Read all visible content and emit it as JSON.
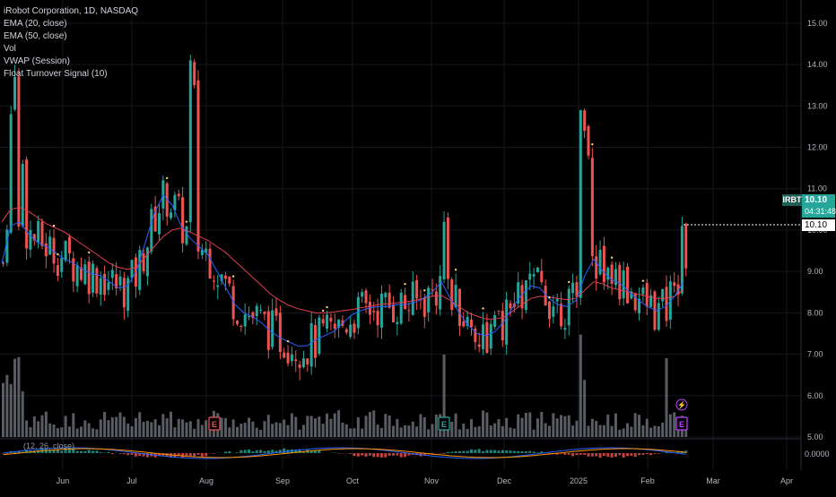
{
  "header": {
    "symbol_line": "iRobot Corporation, 1D, NASDAQ",
    "indicators": [
      "EMA (20, close)",
      "EMA (50, close)",
      "Vol",
      "VWAP (Session)",
      "Float Turnover Signal (10)"
    ],
    "macd_label": "(12, 26, close)"
  },
  "price_axis": {
    "ticks": [
      "15.00",
      "14.00",
      "13.00",
      "12.00",
      "11.00",
      "10.00",
      "9.00",
      "8.00",
      "7.00",
      "6.00",
      "5.00"
    ],
    "macd_tick": "0.0000"
  },
  "last_price": {
    "symbol": "IRBT",
    "price": "10.10",
    "countdown": "04:31:48",
    "line_label": "10.10"
  },
  "time_axis": {
    "labels": [
      "Jun",
      "Jul",
      "Aug",
      "Sep",
      "Oct",
      "Nov",
      "Dec",
      "2025",
      "Feb",
      "Mar",
      "Apr"
    ]
  },
  "markers": {
    "earnings": "E",
    "dividend": "⚡"
  },
  "colors": {
    "up": "#26a69a",
    "down": "#ef5350",
    "ema20": "#2962ff",
    "ema50": "#e04050",
    "volume": "#787b86",
    "tag_bg": "#26a69a",
    "signal": "#f5d76e",
    "earnings_up": "#26a69a",
    "earnings_down": "#ef5350",
    "earnings_future": "#c040ff"
  },
  "chart_data": {
    "type": "candlestick",
    "title": "iRobot Corporation, 1D, NASDAQ",
    "ylim": [
      5,
      15.3
    ],
    "ema20": [
      [
        0,
        9.2
      ],
      [
        10,
        10.1
      ],
      [
        20,
        10.2
      ],
      [
        30,
        9.9
      ],
      [
        40,
        9.7
      ],
      [
        50,
        9.6
      ],
      [
        60,
        9.45
      ],
      [
        70,
        9.3
      ],
      [
        80,
        9.2
      ],
      [
        90,
        9.05
      ],
      [
        100,
        8.95
      ],
      [
        110,
        8.9
      ],
      [
        120,
        8.75
      ],
      [
        130,
        8.6
      ],
      [
        140,
        8.65
      ],
      [
        150,
        9.0
      ],
      [
        160,
        9.7
      ],
      [
        170,
        10.4
      ],
      [
        180,
        10.85
      ],
      [
        190,
        10.6
      ],
      [
        200,
        10.1
      ],
      [
        210,
        9.8
      ],
      [
        220,
        9.6
      ],
      [
        230,
        9.4
      ],
      [
        240,
        9.0
      ],
      [
        250,
        8.6
      ],
      [
        260,
        8.2
      ],
      [
        270,
        8.0
      ],
      [
        280,
        7.9
      ],
      [
        290,
        7.75
      ],
      [
        300,
        7.55
      ],
      [
        310,
        7.4
      ],
      [
        320,
        7.3
      ],
      [
        330,
        7.2
      ],
      [
        340,
        7.2
      ],
      [
        350,
        7.35
      ],
      [
        360,
        7.45
      ],
      [
        370,
        7.55
      ],
      [
        380,
        7.75
      ],
      [
        390,
        7.95
      ],
      [
        400,
        8.05
      ],
      [
        410,
        8.12
      ],
      [
        420,
        8.15
      ],
      [
        430,
        8.15
      ],
      [
        440,
        8.2
      ],
      [
        450,
        8.2
      ],
      [
        460,
        8.25
      ],
      [
        470,
        8.35
      ],
      [
        480,
        8.5
      ],
      [
        490,
        8.75
      ],
      [
        500,
        8.35
      ],
      [
        510,
        8.0
      ],
      [
        520,
        7.7
      ],
      [
        530,
        7.5
      ],
      [
        540,
        7.45
      ],
      [
        550,
        7.55
      ],
      [
        560,
        7.8
      ],
      [
        570,
        8.15
      ],
      [
        580,
        8.45
      ],
      [
        590,
        8.65
      ],
      [
        600,
        8.6
      ],
      [
        610,
        8.35
      ],
      [
        620,
        8.2
      ],
      [
        630,
        8.15
      ],
      [
        640,
        8.3
      ],
      [
        650,
        8.9
      ],
      [
        660,
        9.3
      ],
      [
        670,
        9.0
      ],
      [
        680,
        8.8
      ],
      [
        690,
        8.7
      ],
      [
        700,
        8.5
      ],
      [
        710,
        8.3
      ],
      [
        720,
        8.15
      ],
      [
        730,
        8.05
      ],
      [
        740,
        8.15
      ],
      [
        750,
        8.4
      ],
      [
        760,
        8.75
      ]
    ],
    "ema50": [
      [
        0,
        10.2
      ],
      [
        10,
        10.5
      ],
      [
        20,
        10.55
      ],
      [
        30,
        10.45
      ],
      [
        40,
        10.3
      ],
      [
        50,
        10.15
      ],
      [
        60,
        10.05
      ],
      [
        70,
        9.95
      ],
      [
        80,
        9.8
      ],
      [
        90,
        9.65
      ],
      [
        100,
        9.5
      ],
      [
        110,
        9.35
      ],
      [
        120,
        9.2
      ],
      [
        130,
        9.1
      ],
      [
        140,
        9.05
      ],
      [
        150,
        9.1
      ],
      [
        160,
        9.35
      ],
      [
        170,
        9.6
      ],
      [
        180,
        9.85
      ],
      [
        190,
        10.0
      ],
      [
        200,
        10.05
      ],
      [
        210,
        9.95
      ],
      [
        220,
        9.85
      ],
      [
        230,
        9.75
      ],
      [
        240,
        9.6
      ],
      [
        250,
        9.45
      ],
      [
        260,
        9.25
      ],
      [
        270,
        9.05
      ],
      [
        280,
        8.85
      ],
      [
        290,
        8.65
      ],
      [
        300,
        8.45
      ],
      [
        310,
        8.3
      ],
      [
        320,
        8.18
      ],
      [
        330,
        8.1
      ],
      [
        340,
        8.05
      ],
      [
        350,
        8.0
      ],
      [
        360,
        8.0
      ],
      [
        370,
        8.02
      ],
      [
        380,
        8.05
      ],
      [
        390,
        8.08
      ],
      [
        400,
        8.12
      ],
      [
        410,
        8.16
      ],
      [
        420,
        8.2
      ],
      [
        430,
        8.22
      ],
      [
        440,
        8.24
      ],
      [
        450,
        8.26
      ],
      [
        460,
        8.3
      ],
      [
        470,
        8.35
      ],
      [
        480,
        8.4
      ],
      [
        490,
        8.42
      ],
      [
        500,
        8.3
      ],
      [
        510,
        8.15
      ],
      [
        520,
        8.0
      ],
      [
        530,
        7.92
      ],
      [
        540,
        7.85
      ],
      [
        550,
        7.85
      ],
      [
        560,
        7.9
      ],
      [
        570,
        8.05
      ],
      [
        580,
        8.2
      ],
      [
        590,
        8.35
      ],
      [
        600,
        8.4
      ],
      [
        610,
        8.38
      ],
      [
        620,
        8.35
      ],
      [
        630,
        8.32
      ],
      [
        640,
        8.35
      ],
      [
        650,
        8.55
      ],
      [
        660,
        8.75
      ],
      [
        670,
        8.7
      ],
      [
        680,
        8.6
      ],
      [
        690,
        8.55
      ],
      [
        700,
        8.5
      ],
      [
        710,
        8.45
      ],
      [
        720,
        8.4
      ],
      [
        730,
        8.35
      ],
      [
        740,
        8.35
      ],
      [
        750,
        8.4
      ],
      [
        760,
        8.55
      ]
    ]
  }
}
